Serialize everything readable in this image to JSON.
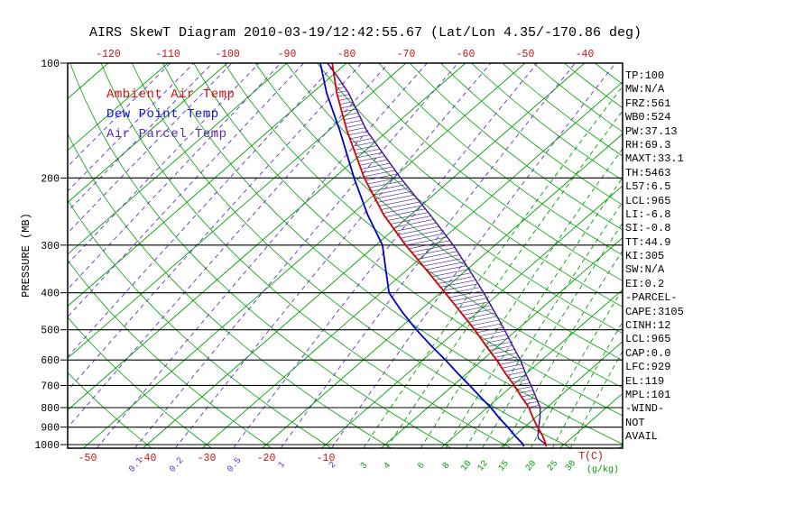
{
  "chart_data": {
    "type": "skewt",
    "title": "AIRS SkewT Diagram 2010-03-19/12:42:55.67 (Lat/Lon 4.35/-170.86 deg)",
    "ylabel": "PRESSURE (MB)",
    "pressure_ticks": [
      100,
      200,
      300,
      400,
      500,
      600,
      700,
      800,
      900,
      1000
    ],
    "top_temp_ticks": [
      -120,
      -110,
      -100,
      -90,
      -80,
      -70,
      -60,
      -50,
      -40
    ],
    "bottom_temp_ticks": [
      -50,
      -40,
      -30,
      -20,
      -10
    ],
    "units": {
      "temp": "T(C)",
      "mixing": "(g/kg)"
    },
    "legend": [
      {
        "label": "Ambient Air Temp",
        "color": "#cc1111"
      },
      {
        "label": "Dew Point Temp",
        "color": "#1111cc"
      },
      {
        "label": "Air Parcel Temp",
        "color": "#5b2ab5"
      }
    ],
    "grid": {
      "isotherm_min": -120,
      "isotherm_max": 90,
      "isotherm_step": 10,
      "dry_adiabat_min": -40,
      "dry_adiabat_max": 200,
      "dry_adiabat_step": 10,
      "mixing_ratio_purple": [
        2e-05,
        5e-05,
        0.0001,
        0.0002,
        0.0005,
        0.001,
        0.002,
        0.005,
        0.01,
        0.02,
        0.05,
        0.1,
        0.2,
        0.5,
        1,
        2
      ],
      "mixing_ratio_purple_labeled": [
        0.1,
        0.2,
        0.5,
        1,
        2
      ],
      "mixing_ratio_green": [
        3,
        4,
        6,
        8,
        10,
        12,
        15,
        20,
        25,
        30
      ]
    },
    "colors": {
      "isotherm": "#00a000",
      "dry_adiabat": "#00a000",
      "mixing_green": "#00a000",
      "mixing_purple": "#5b37c8",
      "pressure_line": "#000000",
      "frame": "#000000",
      "ambient": "#d40000",
      "dewpoint": "#0000cc",
      "parcel": "#45189b",
      "hatch": "#45189b"
    },
    "series": {
      "ambient": [
        [
          1012,
          27.4
        ],
        [
          1000,
          27.0
        ],
        [
          950,
          24.8
        ],
        [
          900,
          22.2
        ],
        [
          850,
          19.6
        ],
        [
          800,
          17.0
        ],
        [
          750,
          13.7
        ],
        [
          700,
          10.3
        ],
        [
          650,
          6.4
        ],
        [
          600,
          2.4
        ],
        [
          550,
          -2.2
        ],
        [
          500,
          -7.1
        ],
        [
          450,
          -12.8
        ],
        [
          400,
          -19.2
        ],
        [
          350,
          -26.5
        ],
        [
          300,
          -35.0
        ],
        [
          250,
          -44.5
        ],
        [
          200,
          -54.9
        ],
        [
          150,
          -67.0
        ],
        [
          120,
          -75.8
        ],
        [
          100,
          -82.4
        ]
      ],
      "dewpoint": [
        [
          1012,
          23.6
        ],
        [
          1000,
          23.2
        ],
        [
          950,
          20.2
        ],
        [
          900,
          17.2
        ],
        [
          850,
          13.9
        ],
        [
          800,
          10.6
        ],
        [
          750,
          6.8
        ],
        [
          700,
          2.8
        ],
        [
          650,
          -1.6
        ],
        [
          600,
          -6.2
        ],
        [
          550,
          -11.4
        ],
        [
          500,
          -16.9
        ],
        [
          450,
          -22.6
        ],
        [
          400,
          -28.6
        ],
        [
          350,
          -33.4
        ],
        [
          300,
          -38.9
        ],
        [
          250,
          -47.2
        ],
        [
          200,
          -56.6
        ],
        [
          150,
          -68.2
        ],
        [
          120,
          -77.5
        ],
        [
          100,
          -84.4
        ]
      ],
      "parcel": [
        [
          1012,
          27.4
        ],
        [
          1000,
          27.0
        ],
        [
          965,
          24.6
        ],
        [
          950,
          24.0
        ],
        [
          900,
          22.4
        ],
        [
          850,
          20.8
        ],
        [
          800,
          18.9
        ],
        [
          750,
          16.1
        ],
        [
          700,
          13.1
        ],
        [
          650,
          9.8
        ],
        [
          600,
          6.4
        ],
        [
          550,
          2.3
        ],
        [
          500,
          -2.1
        ],
        [
          450,
          -7.1
        ],
        [
          400,
          -12.7
        ],
        [
          350,
          -19.3
        ],
        [
          300,
          -27.0
        ],
        [
          250,
          -36.7
        ],
        [
          200,
          -48.8
        ],
        [
          150,
          -63.7
        ],
        [
          120,
          -73.8
        ],
        [
          110,
          -78.2
        ],
        [
          100,
          -83.2
        ]
      ]
    },
    "hatch_region": {
      "from_pressure": 950,
      "to_pressure": 110
    },
    "stats": [
      "TP:100",
      "MW:N/A",
      "FRZ:561",
      "WB0:524",
      "PW:37.13",
      "RH:69.3",
      "MAXT:33.1",
      "TH:5463",
      "L57:6.5",
      "LCL:965",
      "LI:-6.8",
      "SI:-0.8",
      "TT:44.9",
      "KI:305",
      "SW:N/A",
      "EI:0.2",
      "-PARCEL-",
      "CAPE:3105",
      "CINH:12",
      "LCL:965",
      "CAP:0.0",
      "LFC:929",
      "EL:119",
      "MPL:101",
      "-WIND-",
      "NOT",
      "AVAIL"
    ]
  }
}
